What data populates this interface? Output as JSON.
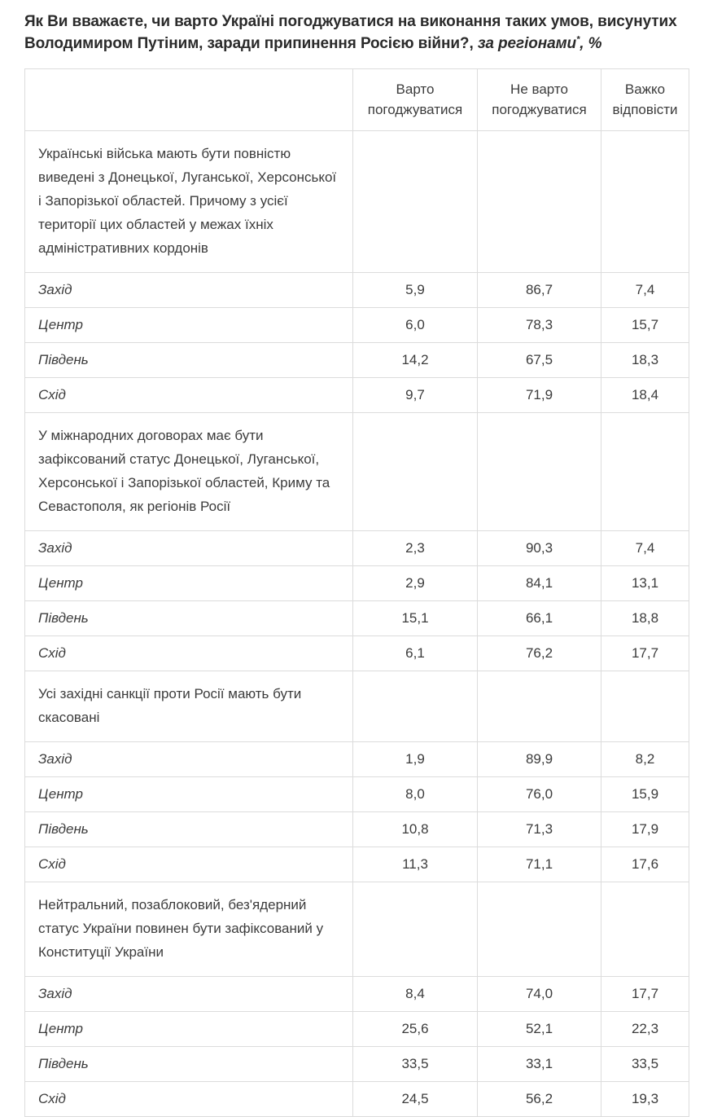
{
  "title": {
    "main": "Як Ви вважаєте, чи варто Україні погоджуватися на виконання таких умов, висунутих Володимиром Путіним, заради припинення Росією війни?,",
    "note": "за регіонами",
    "asterisk": "*",
    "percent": ", %"
  },
  "table": {
    "columns": [
      "Варто погоджуватися",
      "Не варто погоджуватися",
      "Важко відповісти"
    ],
    "sections": [
      {
        "question": "Українські війська мають бути повністю виведені з Донецької, Луганської, Херсонської і Запорізької областей. Причому з усієї території цих областей у межах їхніх адміністративних кордонів",
        "rows": [
          {
            "region": "Захід",
            "values": [
              "5,9",
              "86,7",
              "7,4"
            ]
          },
          {
            "region": "Центр",
            "values": [
              "6,0",
              "78,3",
              "15,7"
            ]
          },
          {
            "region": "Південь",
            "values": [
              "14,2",
              "67,5",
              "18,3"
            ]
          },
          {
            "region": "Схід",
            "values": [
              "9,7",
              "71,9",
              "18,4"
            ]
          }
        ]
      },
      {
        "question": "У міжнародних договорах має бути зафіксований статус Донецької, Луганської, Херсонської і Запорізької областей, Криму та Севастополя, як регіонів Росії",
        "rows": [
          {
            "region": "Захід",
            "values": [
              "2,3",
              "90,3",
              "7,4"
            ]
          },
          {
            "region": "Центр",
            "values": [
              "2,9",
              "84,1",
              "13,1"
            ]
          },
          {
            "region": "Південь",
            "values": [
              "15,1",
              "66,1",
              "18,8"
            ]
          },
          {
            "region": "Схід",
            "values": [
              "6,1",
              "76,2",
              "17,7"
            ]
          }
        ]
      },
      {
        "question": "Усі західні санкції проти Росії мають бути скасовані",
        "rows": [
          {
            "region": "Захід",
            "values": [
              "1,9",
              "89,9",
              "8,2"
            ]
          },
          {
            "region": "Центр",
            "values": [
              "8,0",
              "76,0",
              "15,9"
            ]
          },
          {
            "region": "Південь",
            "values": [
              "10,8",
              "71,3",
              "17,9"
            ]
          },
          {
            "region": "Схід",
            "values": [
              "11,3",
              "71,1",
              "17,6"
            ]
          }
        ]
      },
      {
        "question": "Нейтральний, позаблоковий, без'ядерний статус України повинен бути зафіксований у Конституції України",
        "rows": [
          {
            "region": "Захід",
            "values": [
              "8,4",
              "74,0",
              "17,7"
            ]
          },
          {
            "region": "Центр",
            "values": [
              "25,6",
              "52,1",
              "22,3"
            ]
          },
          {
            "region": "Південь",
            "values": [
              "33,5",
              "33,1",
              "33,5"
            ]
          },
          {
            "region": "Схід",
            "values": [
              "24,5",
              "56,2",
              "19,3"
            ]
          }
        ]
      }
    ]
  },
  "chart_data": {
    "type": "table",
    "title": "Як Ви вважаєте, чи варто Україні погоджуватися на виконання таких умов, висунутих Володимиром Путіним, заради припинення Росією війни?, за регіонами*, %",
    "columns": [
      "Варто погоджуватися",
      "Не варто погоджуватися",
      "Важко відповісти"
    ],
    "row_groups": [
      {
        "condition": "Українські війська мають бути повністю виведені з Донецької, Луганської, Херсонської і Запорізької областей. Причому з усієї території цих областей у межах їхніх адміністративних кордонів",
        "rows": [
          {
            "region": "Захід",
            "values": [
              5.9,
              86.7,
              7.4
            ]
          },
          {
            "region": "Центр",
            "values": [
              6.0,
              78.3,
              15.7
            ]
          },
          {
            "region": "Південь",
            "values": [
              14.2,
              67.5,
              18.3
            ]
          },
          {
            "region": "Схід",
            "values": [
              9.7,
              71.9,
              18.4
            ]
          }
        ]
      },
      {
        "condition": "У міжнародних договорах має бути зафіксований статус Донецької, Луганської, Херсонської і Запорізької областей, Криму та Севастополя, як регіонів Росії",
        "rows": [
          {
            "region": "Захід",
            "values": [
              2.3,
              90.3,
              7.4
            ]
          },
          {
            "region": "Центр",
            "values": [
              2.9,
              84.1,
              13.1
            ]
          },
          {
            "region": "Південь",
            "values": [
              15.1,
              66.1,
              18.8
            ]
          },
          {
            "region": "Схід",
            "values": [
              6.1,
              76.2,
              17.7
            ]
          }
        ]
      },
      {
        "condition": "Усі західні санкції проти Росії мають бути скасовані",
        "rows": [
          {
            "region": "Захід",
            "values": [
              1.9,
              89.9,
              8.2
            ]
          },
          {
            "region": "Центр",
            "values": [
              8.0,
              76.0,
              15.9
            ]
          },
          {
            "region": "Південь",
            "values": [
              10.8,
              71.3,
              17.9
            ]
          },
          {
            "region": "Схід",
            "values": [
              11.3,
              71.1,
              17.6
            ]
          }
        ]
      },
      {
        "condition": "Нейтральний, позаблоковий, без'ядерний статус України повинен бути зафіксований у Конституції України",
        "rows": [
          {
            "region": "Захід",
            "values": [
              8.4,
              74.0,
              17.7
            ]
          },
          {
            "region": "Центр",
            "values": [
              25.6,
              52.1,
              22.3
            ]
          },
          {
            "region": "Південь",
            "values": [
              33.5,
              33.1,
              33.5
            ]
          },
          {
            "region": "Схід",
            "values": [
              24.5,
              56.2,
              19.3
            ]
          }
        ]
      }
    ],
    "value_unit": "%",
    "decimal_separator": ","
  }
}
